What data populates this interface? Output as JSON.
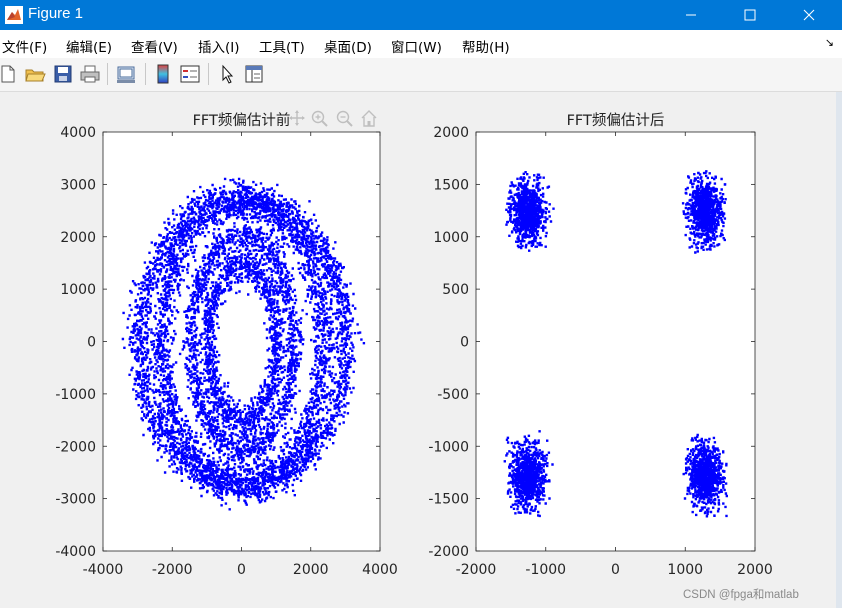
{
  "window": {
    "title": "Figure 1"
  },
  "menu": [
    "文件(F)",
    "编辑(E)",
    "查看(V)",
    "插入(I)",
    "工具(T)",
    "桌面(D)",
    "窗口(W)",
    "帮助(H)"
  ],
  "toolbar": {
    "icons": [
      "new-file-icon",
      "open-folder-icon",
      "save-icon",
      "print-icon",
      "link-plot-icon",
      "insert-colorbar-icon",
      "insert-legend-icon",
      "edit-plot-pointer-icon",
      "property-inspector-icon"
    ]
  },
  "axes_toolbar_icons": [
    "pan-icon",
    "zoom-in-icon",
    "zoom-out-icon",
    "home-icon"
  ],
  "colors": {
    "titlebar": "#0078d7",
    "marker": "#0000ff"
  },
  "chart_data": [
    {
      "type": "scatter",
      "title": "FFT频偏估计前",
      "xlim": [
        -4000,
        4000
      ],
      "ylim": [
        -4000,
        4000
      ],
      "xticks": [
        -4000,
        -2000,
        0,
        2000,
        4000
      ],
      "yticks": [
        -4000,
        -3000,
        -2000,
        -1000,
        0,
        1000,
        2000,
        3000,
        4000
      ],
      "xtick_labels": [
        "-4000",
        "-2000",
        "0",
        "2000",
        "4000"
      ],
      "ytick_labels": [
        "-4000",
        "-3000",
        "-2000",
        "-1000",
        "0",
        "1000",
        "2000",
        "3000",
        "4000"
      ],
      "grid": false,
      "marker_color": "#0000ff",
      "rings": [
        {
          "rx": 1000,
          "ry": 1500,
          "spread": 140,
          "count": 1300
        },
        {
          "rx": 1500,
          "ry": 2050,
          "spread": 130,
          "count": 1500
        },
        {
          "rx": 2350,
          "ry": 2700,
          "spread": 170,
          "count": 2300
        },
        {
          "rx": 3000,
          "ry": 2750,
          "spread": 160,
          "count": 2300
        }
      ]
    },
    {
      "type": "scatter",
      "title": "FFT频偏估计后",
      "xlim": [
        -2000,
        2000
      ],
      "ylim": [
        -2000,
        2000
      ],
      "xticks": [
        -2000,
        -1000,
        0,
        1000,
        2000
      ],
      "yticks": [
        -2000,
        -1500,
        -1000,
        -500,
        0,
        500,
        1000,
        1500,
        2000
      ],
      "xtick_labels": [
        "-2000",
        "-1000",
        "0",
        "1000",
        "2000"
      ],
      "ytick_labels": [
        "-2000",
        "-1500",
        "-1000",
        "-500",
        "0",
        "500",
        "1000",
        "1500",
        "2000"
      ],
      "grid": false,
      "marker_color": "#0000ff",
      "clusters": [
        {
          "cx": -1270,
          "cy": 1250,
          "sx": 120,
          "sy": 150,
          "count": 900
        },
        {
          "cx": 1270,
          "cy": 1250,
          "sx": 120,
          "sy": 150,
          "count": 900
        },
        {
          "cx": -1270,
          "cy": -1270,
          "sx": 120,
          "sy": 150,
          "count": 900
        },
        {
          "cx": 1270,
          "cy": -1270,
          "sx": 120,
          "sy": 150,
          "count": 900
        }
      ]
    }
  ],
  "watermark": "CSDN @fpga和matlab"
}
